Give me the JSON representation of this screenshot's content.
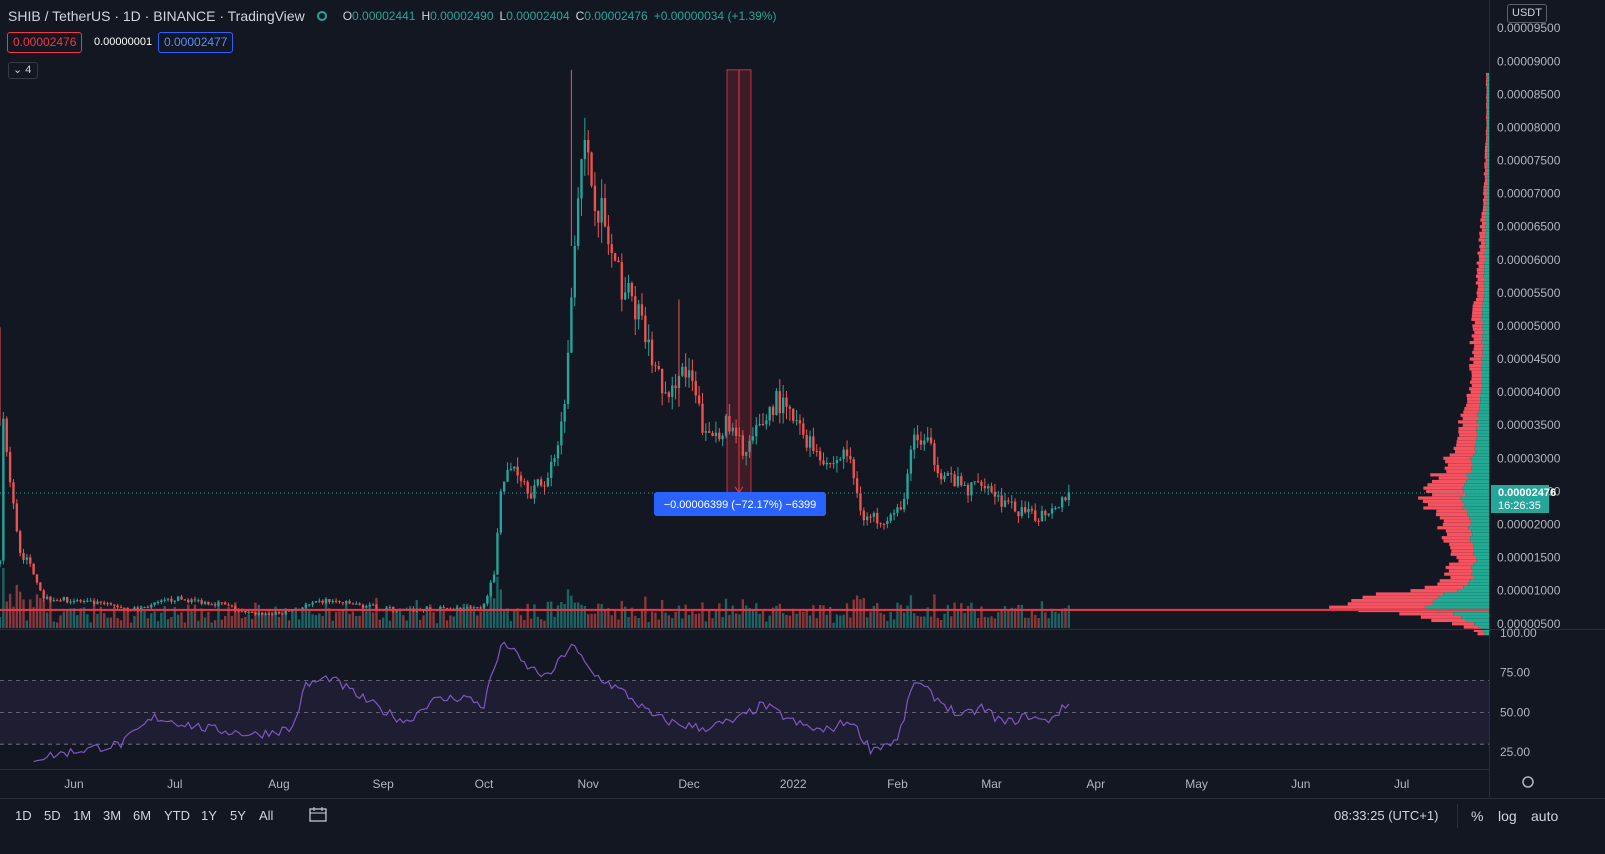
{
  "header": {
    "title": "SHIB / TetherUS · 1D · BINANCE · TradingView",
    "open_label": "O",
    "open": "0.00002441",
    "high_label": "H",
    "high": "0.00002490",
    "low_label": "L",
    "low": "0.00002404",
    "close_label": "C",
    "close": "0.00002476",
    "change": "+0.00000034 (+1.39%)"
  },
  "price_boxes": {
    "bid": "0.00002476",
    "spread": "0.00000001",
    "ask": "0.00002477"
  },
  "indicator_toggle": "4",
  "currency": "USDT",
  "price_axis": {
    "ticks": [
      "0.00009500",
      "0.00009000",
      "0.00008500",
      "0.00008000",
      "0.00007500",
      "0.00007000",
      "0.00006500",
      "0.00006000",
      "0.00005500",
      "0.00005000",
      "0.00004500",
      "0.00004000",
      "0.00003500",
      "0.00003000",
      "0.00002500",
      "0.00002000",
      "0.00001500",
      "0.00001000",
      "0.00000500"
    ],
    "current_price": "0.00002476",
    "countdown": "16:26:35"
  },
  "rsi_axis": {
    "ticks": [
      "100.00",
      "75.00",
      "50.00",
      "25.00"
    ]
  },
  "time_axis": {
    "labels": [
      "Jun",
      "Jul",
      "Aug",
      "Sep",
      "Oct",
      "Nov",
      "Dec",
      "2022",
      "Feb",
      "Mar",
      "Apr",
      "May",
      "Jun",
      "Jul"
    ]
  },
  "measure_label": "−0.00006399 (−72.17%) −6399",
  "timeframes": [
    "1D",
    "5D",
    "1M",
    "3M",
    "6M",
    "YTD",
    "1Y",
    "5Y",
    "All"
  ],
  "clock": "08:33:25 (UTC+1)",
  "right_buttons": {
    "percent": "%",
    "log": "log",
    "auto": "auto"
  },
  "colors": {
    "up": "#26a69a",
    "down": "#ef5350",
    "rsi": "#7e57c2",
    "accent": "#2962ff",
    "background": "#131722"
  },
  "chart_data": {
    "type": "candlestick",
    "symbol": "SHIBUSDT",
    "interval": "1D",
    "price_range": [
      3e-06,
      9.85e-05
    ],
    "horizontal_line": 7.1e-06,
    "measure": {
      "from": 8.87e-05,
      "to": 2.48e-05
    },
    "x_start": "2021-05-10",
    "x_end": "2022-07-27",
    "anchors": [
      [
        "2021-05-10",
        1.4e-05
      ],
      [
        "2021-05-11",
        3.6e-05
      ],
      [
        "2021-05-13",
        2.6e-05
      ],
      [
        "2021-05-16",
        1.6e-05
      ],
      [
        "2021-05-20",
        1.3e-05
      ],
      [
        "2021-05-23",
        9e-06
      ],
      [
        "2021-06-01",
        8.5e-06
      ],
      [
        "2021-06-10",
        7.9e-06
      ],
      [
        "2021-06-20",
        7.2e-06
      ],
      [
        "2021-07-01",
        8.8e-06
      ],
      [
        "2021-07-15",
        8e-06
      ],
      [
        "2021-07-22",
        6.6e-06
      ],
      [
        "2021-08-01",
        6.5e-06
      ],
      [
        "2021-08-15",
        8.5e-06
      ],
      [
        "2021-08-25",
        7.8e-06
      ],
      [
        "2021-09-07",
        7e-06
      ],
      [
        "2021-09-20",
        7.3e-06
      ],
      [
        "2021-09-30",
        7.2e-06
      ],
      [
        "2021-10-04",
        1.2e-05
      ],
      [
        "2021-10-06",
        2.6e-05
      ],
      [
        "2021-10-10",
        2.9e-05
      ],
      [
        "2021-10-15",
        2.5e-05
      ],
      [
        "2021-10-20",
        2.7e-05
      ],
      [
        "2021-10-24",
        3.5e-05
      ],
      [
        "2021-10-26",
        4.5e-05
      ],
      [
        "2021-10-28",
        6.5e-05
      ],
      [
        "2021-10-30",
        7.8e-05
      ],
      [
        "2021-11-02",
        7.2e-05
      ],
      [
        "2021-11-05",
        6.7e-05
      ],
      [
        "2021-11-09",
        5.8e-05
      ],
      [
        "2021-11-15",
        5.3e-05
      ],
      [
        "2021-11-20",
        4.5e-05
      ],
      [
        "2021-11-25",
        3.8e-05
      ],
      [
        "2021-11-28",
        4.4e-05
      ],
      [
        "2021-12-02",
        4.1e-05
      ],
      [
        "2021-12-06",
        3.3e-05
      ],
      [
        "2021-12-12",
        3.5e-05
      ],
      [
        "2021-12-18",
        3.1e-05
      ],
      [
        "2021-12-27",
        3.9e-05
      ],
      [
        "2022-01-05",
        3.3e-05
      ],
      [
        "2022-01-12",
        2.9e-05
      ],
      [
        "2022-01-17",
        3.1e-05
      ],
      [
        "2022-01-22",
        2.1e-05
      ],
      [
        "2022-01-28",
        2.1e-05
      ],
      [
        "2022-02-02",
        2.2e-05
      ],
      [
        "2022-02-06",
        3.3e-05
      ],
      [
        "2022-02-10",
        3.2e-05
      ],
      [
        "2022-02-14",
        2.8e-05
      ],
      [
        "2022-02-22",
        2.5e-05
      ],
      [
        "2022-02-26",
        2.7e-05
      ],
      [
        "2022-03-05",
        2.3e-05
      ],
      [
        "2022-03-14",
        2.1e-05
      ],
      [
        "2022-03-20",
        2.3e-05
      ],
      [
        "2022-03-24",
        2.48e-05
      ]
    ],
    "rsi": {
      "levels": [
        30,
        50,
        70
      ],
      "range": [
        15,
        100
      ],
      "anchors": [
        [
          "2021-05-20",
          21
        ],
        [
          "2021-06-05",
          27
        ],
        [
          "2021-06-15",
          30
        ],
        [
          "2021-06-25",
          47
        ],
        [
          "2021-07-10",
          40
        ],
        [
          "2021-07-25",
          36
        ],
        [
          "2021-08-05",
          40
        ],
        [
          "2021-08-09",
          67
        ],
        [
          "2021-08-16",
          72
        ],
        [
          "2021-08-25",
          60
        ],
        [
          "2021-09-02",
          50
        ],
        [
          "2021-09-08",
          44
        ],
        [
          "2021-09-15",
          57
        ],
        [
          "2021-09-25",
          60
        ],
        [
          "2021-10-01",
          54
        ],
        [
          "2021-10-03",
          72
        ],
        [
          "2021-10-07",
          95
        ],
        [
          "2021-10-13",
          80
        ],
        [
          "2021-10-20",
          72
        ],
        [
          "2021-10-27",
          93
        ],
        [
          "2021-11-02",
          75
        ],
        [
          "2021-11-12",
          62
        ],
        [
          "2021-11-20",
          48
        ],
        [
          "2021-11-27",
          43
        ],
        [
          "2021-12-05",
          40
        ],
        [
          "2021-12-15",
          45
        ],
        [
          "2021-12-23",
          55
        ],
        [
          "2022-01-02",
          43
        ],
        [
          "2022-01-10",
          38
        ],
        [
          "2022-01-18",
          45
        ],
        [
          "2022-01-24",
          27
        ],
        [
          "2022-02-01",
          32
        ],
        [
          "2022-02-06",
          70
        ],
        [
          "2022-02-12",
          60
        ],
        [
          "2022-02-20",
          47
        ],
        [
          "2022-02-26",
          53
        ],
        [
          "2022-03-05",
          43
        ],
        [
          "2022-03-12",
          48
        ],
        [
          "2022-03-17",
          44
        ],
        [
          "2022-03-24",
          55
        ]
      ]
    },
    "volume_profile": [
      [
        4e-06,
        0.05
      ],
      [
        6e-06,
        0.25
      ],
      [
        7.5e-06,
        0.55
      ],
      [
        9e-06,
        0.45
      ],
      [
        1.1e-05,
        0.18
      ],
      [
        1.5e-05,
        0.12
      ],
      [
        2e-05,
        0.18
      ],
      [
        2.5e-05,
        0.25
      ],
      [
        2.9e-05,
        0.16
      ],
      [
        3.3e-05,
        0.12
      ],
      [
        4e-05,
        0.07
      ],
      [
        5e-05,
        0.06
      ],
      [
        6e-05,
        0.04
      ],
      [
        7e-05,
        0.02
      ],
      [
        8e-05,
        0.01
      ]
    ]
  }
}
